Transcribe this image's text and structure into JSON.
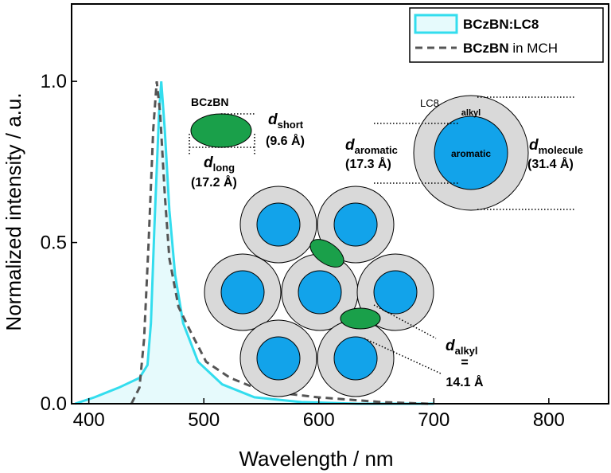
{
  "chart_data": {
    "type": "line",
    "x_label": "Wavelength / nm",
    "y_label": "Normalized intensity / a.u.",
    "xlim": [
      385,
      852
    ],
    "ylim": [
      0,
      1.24
    ],
    "xticks": [
      400,
      500,
      600,
      700,
      800
    ],
    "yticks": [
      {
        "value": 0,
        "label": "0.0"
      },
      {
        "value": 0.5,
        "label": "0.5"
      },
      {
        "value": 1,
        "label": "1.0"
      }
    ],
    "legend": "upper right",
    "series": [
      {
        "name": "BCzBN:LC8",
        "color": "#33ddee",
        "fill": "#e6fafc",
        "style": "solid",
        "x": [
          388,
          405,
          426,
          444,
          451,
          454,
          457,
          461,
          463,
          466,
          470,
          475,
          482,
          495,
          516,
          544,
          585,
          634,
          700
        ],
        "values": [
          0,
          0.02,
          0.05,
          0.08,
          0.12,
          0.25,
          0.55,
          0.9,
          1.0,
          0.85,
          0.6,
          0.4,
          0.25,
          0.13,
          0.06,
          0.02,
          0.005,
          0,
          0
        ]
      },
      {
        "name": "BCzBN in MCH",
        "color": "#555555",
        "style": "dashed",
        "x": [
          437,
          444,
          448,
          452,
          456,
          459,
          462,
          466,
          470,
          478,
          489,
          502,
          523,
          551,
          599,
          655,
          696
        ],
        "values": [
          0,
          0.05,
          0.2,
          0.5,
          0.85,
          1.0,
          0.9,
          0.65,
          0.45,
          0.3,
          0.22,
          0.13,
          0.08,
          0.04,
          0.02,
          0.005,
          0
        ]
      }
    ],
    "annotations": [
      {
        "text": "BCzBN"
      },
      {
        "symbol": "d",
        "sub": "short",
        "value": "(9.6 Å)"
      },
      {
        "symbol": "d",
        "sub": "long",
        "value": "(17.2 Å)"
      },
      {
        "text": "LC8"
      },
      {
        "text": "alkyl"
      },
      {
        "text": "aromatic"
      },
      {
        "symbol": "d",
        "sub": "aromatic",
        "value": "(17.3 Å)"
      },
      {
        "symbol": "d",
        "sub": "molecule",
        "value": "(31.4 Å)"
      },
      {
        "symbol": "d",
        "sub": "alkyl",
        "equals": "=",
        "value": "14.1 Å"
      }
    ]
  }
}
